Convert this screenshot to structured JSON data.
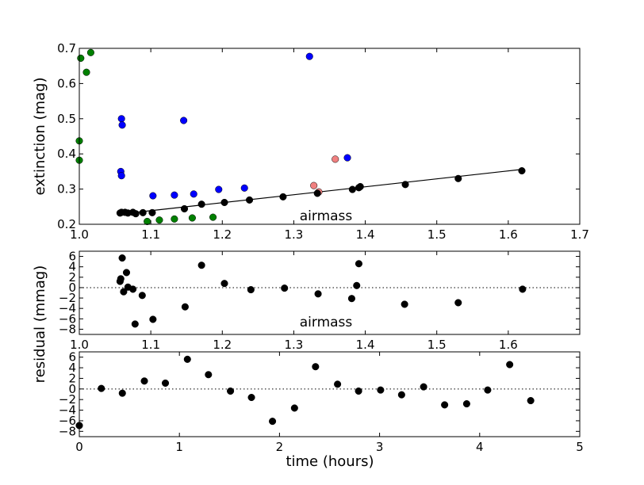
{
  "chart_data": [
    {
      "type": "scatter",
      "xlabel": "",
      "ylabel": "extinction (mag)",
      "annotation": "airmass",
      "xlim": [
        1.0,
        1.7
      ],
      "ylim": [
        0.2,
        0.7
      ],
      "xticks": [
        "1.0",
        "1.1",
        "1.2",
        "1.3",
        "1.4",
        "1.5",
        "1.6",
        "1.7"
      ],
      "yticks": [
        "0.2",
        "0.3",
        "0.4",
        "0.5",
        "0.6",
        "0.7"
      ],
      "series": [
        {
          "color": "#008000",
          "points": [
            [
              1.002,
              0.672
            ],
            [
              1.01,
              0.632
            ],
            [
              1.016,
              0.688
            ],
            [
              1.0,
              0.437
            ],
            [
              1.0,
              0.382
            ],
            [
              1.095,
              0.208
            ],
            [
              1.112,
              0.212
            ],
            [
              1.133,
              0.215
            ],
            [
              1.158,
              0.218
            ],
            [
              1.187,
              0.22
            ]
          ]
        },
        {
          "color": "#0000ff",
          "points": [
            [
              1.059,
              0.5
            ],
            [
              1.06,
              0.482
            ],
            [
              1.058,
              0.35
            ],
            [
              1.059,
              0.338
            ],
            [
              1.103,
              0.281
            ],
            [
              1.133,
              0.283
            ],
            [
              1.146,
              0.495
            ],
            [
              1.16,
              0.286
            ],
            [
              1.195,
              0.299
            ],
            [
              1.231,
              0.303
            ],
            [
              1.322,
              0.677
            ],
            [
              1.375,
              0.389
            ]
          ]
        },
        {
          "color": "#f08080",
          "points": [
            [
              1.328,
              0.31
            ],
            [
              1.335,
              0.292
            ],
            [
              1.358,
              0.385
            ]
          ]
        },
        {
          "color": "#000000",
          "points": [
            [
              1.057,
              0.232
            ],
            [
              1.059,
              0.234
            ],
            [
              1.064,
              0.234
            ],
            [
              1.068,
              0.232
            ],
            [
              1.075,
              0.234
            ],
            [
              1.079,
              0.23
            ],
            [
              1.089,
              0.233
            ],
            [
              1.102,
              0.233
            ],
            [
              1.147,
              0.244
            ],
            [
              1.171,
              0.257
            ],
            [
              1.203,
              0.262
            ],
            [
              1.238,
              0.269
            ],
            [
              1.285,
              0.278
            ],
            [
              1.333,
              0.288
            ],
            [
              1.382,
              0.299
            ],
            [
              1.391,
              0.304
            ],
            [
              1.393,
              0.307
            ],
            [
              1.456,
              0.313
            ],
            [
              1.53,
              0.33
            ],
            [
              1.619,
              0.352
            ]
          ]
        }
      ],
      "fit_line": {
        "color": "#000000",
        "x": [
          1.057,
          1.619
        ],
        "y": [
          0.229,
          0.356
        ]
      }
    },
    {
      "type": "scatter",
      "xlabel": "",
      "ylabel": "residual (mmag)",
      "annotation": "airmass",
      "xlim": [
        1.0,
        1.7
      ],
      "ylim": [
        -9,
        7
      ],
      "xticks": [
        "1.0",
        "1.1",
        "1.2",
        "1.3",
        "1.4",
        "1.5",
        "1.6"
      ],
      "yticks": [
        "6",
        "4",
        "2",
        "0",
        "−2",
        "−4",
        "−6",
        "−8"
      ],
      "zero_line": {
        "style": "dotted",
        "y": 0
      },
      "series": [
        {
          "color": "#000000",
          "points": [
            [
              1.057,
              1.2
            ],
            [
              1.058,
              1.7
            ],
            [
              1.06,
              5.7
            ],
            [
              1.062,
              -0.8
            ],
            [
              1.066,
              2.9
            ],
            [
              1.068,
              0.1
            ],
            [
              1.075,
              -0.3
            ],
            [
              1.078,
              -7.0
            ],
            [
              1.088,
              -1.5
            ],
            [
              1.103,
              -6.1
            ],
            [
              1.148,
              -3.7
            ],
            [
              1.171,
              4.3
            ],
            [
              1.203,
              0.8
            ],
            [
              1.24,
              -0.4
            ],
            [
              1.287,
              -0.1
            ],
            [
              1.334,
              -1.2
            ],
            [
              1.381,
              -2.1
            ],
            [
              1.388,
              0.4
            ],
            [
              1.391,
              4.6
            ],
            [
              1.455,
              -3.2
            ],
            [
              1.53,
              -2.9
            ],
            [
              1.62,
              -0.3
            ]
          ]
        }
      ]
    },
    {
      "type": "scatter",
      "xlabel": "time (hours)",
      "ylabel": "",
      "xlim": [
        0,
        5
      ],
      "ylim": [
        -9,
        7
      ],
      "xticks": [
        "0",
        "1",
        "2",
        "3",
        "4",
        "5"
      ],
      "yticks": [
        "6",
        "4",
        "2",
        "0",
        "−2",
        "−4",
        "−6",
        "−8"
      ],
      "zero_line": {
        "style": "dotted",
        "y": 0
      },
      "series": [
        {
          "color": "#000000",
          "points": [
            [
              0.0,
              -6.9
            ],
            [
              0.22,
              0.1
            ],
            [
              0.43,
              -0.8
            ],
            [
              0.65,
              1.5
            ],
            [
              0.86,
              1.1
            ],
            [
              1.08,
              5.6
            ],
            [
              1.29,
              2.7
            ],
            [
              1.51,
              -0.4
            ],
            [
              1.72,
              -1.6
            ],
            [
              1.93,
              -6.1
            ],
            [
              2.15,
              -3.6
            ],
            [
              2.36,
              4.2
            ],
            [
              2.58,
              0.9
            ],
            [
              2.79,
              -0.4
            ],
            [
              3.01,
              -0.2
            ],
            [
              3.22,
              -1.1
            ],
            [
              3.44,
              0.4
            ],
            [
              3.65,
              -3.0
            ],
            [
              3.87,
              -2.8
            ],
            [
              4.08,
              -0.2
            ],
            [
              4.3,
              4.6
            ],
            [
              4.51,
              -2.2
            ]
          ]
        }
      ]
    }
  ]
}
